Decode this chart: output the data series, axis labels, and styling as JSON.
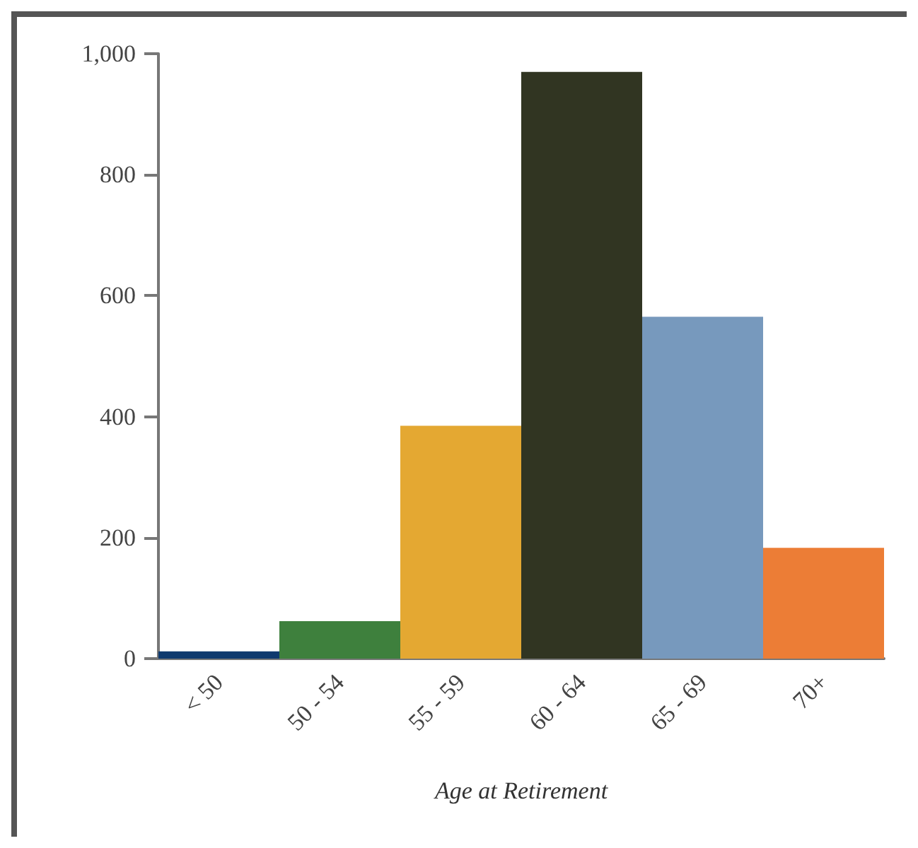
{
  "chart_data": {
    "type": "bar",
    "xlabel": "Age at Retirement",
    "categories": [
      "< 50",
      "50 - 54",
      "55 - 59",
      "60 - 64",
      "65 - 69",
      "70+"
    ],
    "values": [
      12,
      62,
      385,
      970,
      565,
      183
    ],
    "colors": [
      "#0f3a6e",
      "#3e803d",
      "#e4a832",
      "#313522",
      "#7799bd",
      "#ec7d36"
    ],
    "ylim": [
      0,
      1000
    ],
    "yticks": [
      0,
      200,
      400,
      600,
      800,
      {
        "value": 1000,
        "label": "1,000"
      }
    ],
    "grid": false
  }
}
